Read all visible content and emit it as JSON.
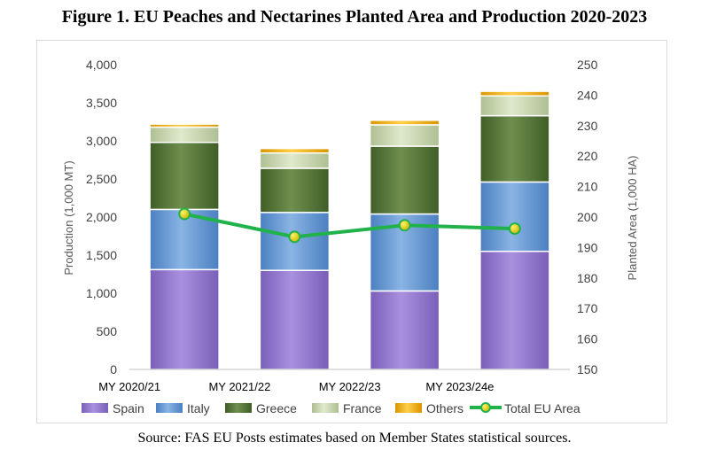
{
  "figure": {
    "title": "Figure 1. EU Peaches and Nectarines Planted Area and Production 2020-2023",
    "source": "Source: FAS EU Posts estimates based on Member States statistical sources."
  },
  "chart_data": {
    "type": "bar",
    "stacked": true,
    "title": "",
    "xlabel": "",
    "ylabel": "Production (1,000 MT)",
    "y2label": "Planted Area (1,000 HA)",
    "ylim": [
      0,
      4000
    ],
    "y2lim": [
      150,
      250
    ],
    "yticks": [
      "0",
      "500",
      "1,000",
      "1,500",
      "2,000",
      "2,500",
      "3,000",
      "3,500",
      "4,000"
    ],
    "y2ticks": [
      "150",
      "160",
      "170",
      "180",
      "190",
      "200",
      "210",
      "220",
      "230",
      "240",
      "250"
    ],
    "categories": [
      "MY 2020/21",
      "MY 2021/22",
      "MY 2022/23",
      "MY 2023/24e"
    ],
    "series": [
      {
        "name": "Spain",
        "kind": "bar",
        "axis": "left",
        "color": "#9a7fd1",
        "values": [
          1310,
          1300,
          1030,
          1550
        ]
      },
      {
        "name": "Italy",
        "kind": "bar",
        "axis": "left",
        "color": "#6a9fd6",
        "values": [
          790,
          760,
          1010,
          910
        ]
      },
      {
        "name": "Greece",
        "kind": "bar",
        "axis": "left",
        "color": "#5e7f3f",
        "values": [
          880,
          580,
          890,
          870
        ]
      },
      {
        "name": "France",
        "kind": "bar",
        "axis": "left",
        "color": "#c9d8b0",
        "values": [
          200,
          200,
          280,
          260
        ]
      },
      {
        "name": "Others",
        "kind": "bar",
        "axis": "left",
        "color": "#f0b400",
        "values": [
          40,
          60,
          60,
          60
        ]
      },
      {
        "name": "Total EU Area",
        "kind": "line",
        "axis": "right",
        "color": "#22b24c",
        "values": [
          201,
          193.5,
          197.3,
          196.2
        ]
      }
    ],
    "legend_position": "bottom",
    "grid": false
  }
}
